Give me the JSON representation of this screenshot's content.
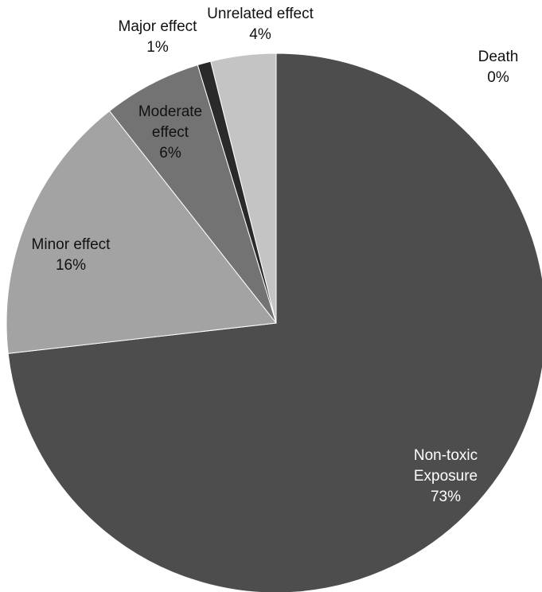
{
  "chart_data": {
    "type": "pie",
    "title": "",
    "slices": [
      {
        "label": [
          "Non-toxic",
          "Exposure"
        ],
        "percent_text": "73%",
        "value": 73.2,
        "color": "#4d4d4d"
      },
      {
        "label": [
          "Minor effect"
        ],
        "percent_text": "16%",
        "value": 16.2,
        "color": "#a3a3a3"
      },
      {
        "label": [
          "Moderate",
          "effect"
        ],
        "percent_text": "6%",
        "value": 5.9,
        "color": "#737373"
      },
      {
        "label": [
          "Major effect"
        ],
        "percent_text": "1%",
        "value": 0.8,
        "color": "#2a2a2a"
      },
      {
        "label": [
          "Unrelated effect"
        ],
        "percent_text": "4%",
        "value": 3.9,
        "color": "#c4c4c4"
      },
      {
        "label": [
          "Death"
        ],
        "percent_text": "0%",
        "value": 0.0,
        "color": "#1a1a1a"
      }
    ]
  }
}
